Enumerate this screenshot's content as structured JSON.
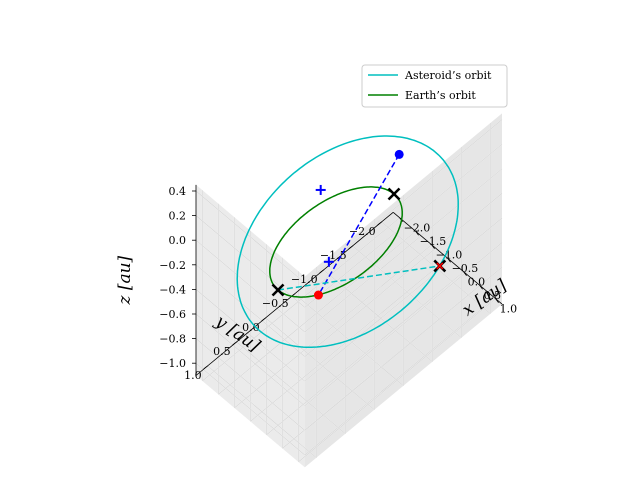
{
  "chart_data": {
    "type": "line3d",
    "view": {
      "elevation": 20,
      "azimuth": -135
    },
    "xlabel": "x [au]",
    "ylabel": "y [au]",
    "zlabel": "z [au]",
    "xlim": [
      -2.2,
      1.2
    ],
    "ylim": [
      -2.2,
      1.2
    ],
    "zlim": [
      -1.1,
      0.45
    ],
    "xticks": [
      {
        "v": -2.0,
        "label": "−2.0"
      },
      {
        "v": -1.5,
        "label": "−1.5"
      },
      {
        "v": -1.0,
        "label": "−1.0"
      },
      {
        "v": -0.5,
        "label": "−0.5"
      },
      {
        "v": 0.0,
        "label": "0.0"
      },
      {
        "v": 0.5,
        "label": "0.5"
      },
      {
        "v": 1.0,
        "label": "1.0"
      }
    ],
    "yticks": [
      {
        "v": -2.0,
        "label": "−2.0"
      },
      {
        "v": -1.5,
        "label": "−1.5"
      },
      {
        "v": -1.0,
        "label": "−1.0"
      },
      {
        "v": -0.5,
        "label": "−0.5"
      },
      {
        "v": 0.0,
        "label": "0.0"
      },
      {
        "v": 0.5,
        "label": "0.5"
      },
      {
        "v": 1.0,
        "label": "1.0"
      }
    ],
    "zticks": [
      {
        "v": -1.0,
        "label": "−1.0"
      },
      {
        "v": -0.8,
        "label": "−0.8"
      },
      {
        "v": -0.6,
        "label": "−0.6"
      },
      {
        "v": -0.4,
        "label": "−0.4"
      },
      {
        "v": -0.2,
        "label": "−0.2"
      },
      {
        "v": 0.0,
        "label": "0.0"
      },
      {
        "v": 0.2,
        "label": "0.2"
      },
      {
        "v": 0.4,
        "label": "0.4"
      }
    ],
    "grid": true,
    "legend_position": "top-right",
    "series": [
      {
        "name": "Asteroid’s orbit",
        "color": "#00bfbf",
        "center": [
          -0.63,
          -0.55,
          -0.35
        ],
        "u": [
          1.06,
          -1.32,
          0.0
        ],
        "v": [
          -0.38,
          -0.25,
          0.63
        ]
      },
      {
        "name": "Earth’s orbit",
        "color": "#008000",
        "center": [
          0.0,
          0.0,
          0.0
        ],
        "u": [
          1.0,
          0.0,
          0.0
        ],
        "v": [
          0.0,
          1.0,
          0.0
        ]
      }
    ],
    "markers": [
      {
        "symbol": "dot",
        "color": "#0000ff",
        "point": [
          -0.2,
          -1.2,
          0.2
        ]
      },
      {
        "symbol": "dot",
        "color": "#ff0000",
        "point": [
          0.72,
          0.7,
          0.0
        ]
      },
      {
        "symbol": "plus",
        "color": "#0000ff",
        "point": [
          0.72,
          0.52,
          0.2
        ]
      },
      {
        "symbol": "plus",
        "color": "#0000ff",
        "point": [
          -0.75,
          -0.15,
          0.2
        ]
      },
      {
        "symbol": "x",
        "color": "#000000",
        "point": [
          0.0,
          1.0,
          0.0
        ]
      },
      {
        "symbol": "x",
        "color": "#000000",
        "point": [
          0.0,
          -1.0,
          0.0
        ]
      },
      {
        "symbol": "x",
        "color": "#000000",
        "point": [
          -0.2,
          -1.9,
          -0.98
        ]
      },
      {
        "symbol": "x-small",
        "color": "#ff0000",
        "point": [
          -0.2,
          -1.9,
          -0.98
        ]
      }
    ],
    "connectors": [
      {
        "color": "#0000ff",
        "style": "dashed",
        "from": [
          -0.2,
          -1.2,
          0.2
        ],
        "to": [
          0.72,
          0.7,
          0.0
        ]
      },
      {
        "color": "#00bfbf",
        "style": "dashed",
        "from": [
          0.0,
          1.0,
          0.0
        ],
        "to": [
          -0.2,
          -1.9,
          -0.98
        ]
      }
    ]
  }
}
